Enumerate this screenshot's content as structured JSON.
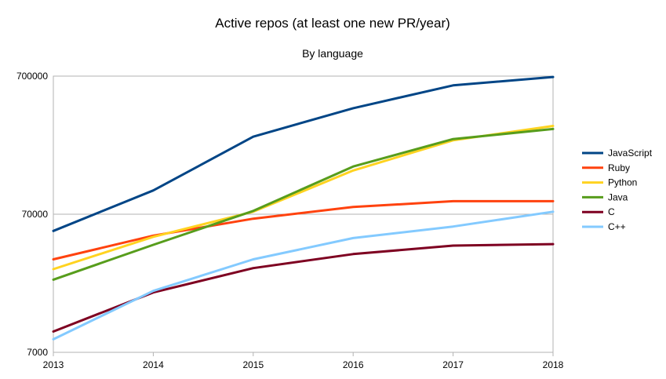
{
  "chart_data": {
    "type": "line",
    "title": "Active repos (at least one new PR/year)",
    "subtitle": "By language",
    "xlabel": "",
    "ylabel": "",
    "x": [
      "2013",
      "2014",
      "2015",
      "2016",
      "2017",
      "2018"
    ],
    "ylim": [
      7000,
      700000
    ],
    "yscale": "log",
    "yticks": [
      7000,
      70000,
      700000
    ],
    "ytick_labels": [
      "7000",
      "70000",
      "700000"
    ],
    "grid": "horizontal major",
    "legend_position": "right",
    "series": [
      {
        "name": "JavaScript",
        "color": "#004586",
        "values": [
          53000,
          104000,
          255000,
          410000,
          600000,
          690000
        ]
      },
      {
        "name": "Ruby",
        "color": "#ff420e",
        "values": [
          33000,
          49000,
          65000,
          79000,
          87000,
          87000
        ]
      },
      {
        "name": "Python",
        "color": "#ffd320",
        "values": [
          28000,
          48000,
          73000,
          145000,
          240000,
          305000
        ]
      },
      {
        "name": "Java",
        "color": "#579d1c",
        "values": [
          23500,
          42000,
          74000,
          155000,
          245000,
          290000
        ]
      },
      {
        "name": "C",
        "color": "#7e0021",
        "values": [
          9900,
          19000,
          28500,
          36000,
          41500,
          42500
        ]
      },
      {
        "name": "C++",
        "color": "#83caff",
        "values": [
          8700,
          19500,
          33000,
          47000,
          57000,
          73000
        ]
      }
    ]
  }
}
